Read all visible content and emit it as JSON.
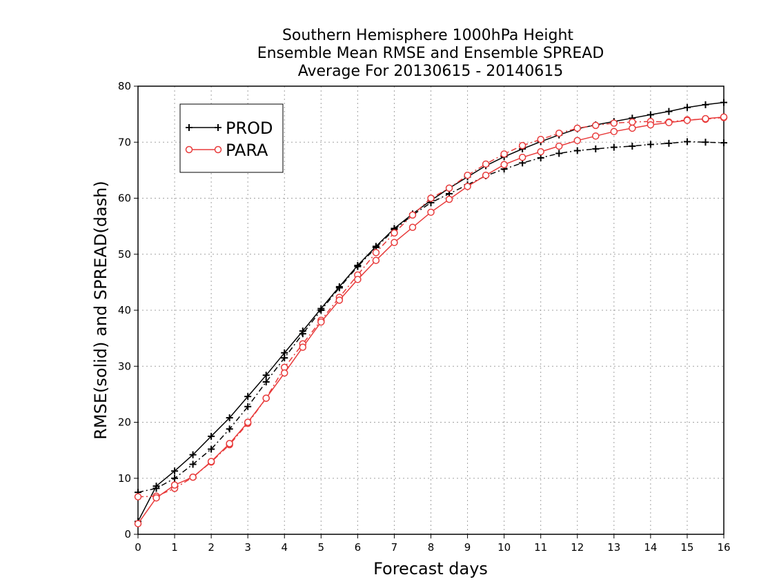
{
  "chart_data": {
    "type": "line",
    "title": [
      "Southern Hemisphere 1000hPa Height",
      "Ensemble Mean RMSE and Ensemble SPREAD",
      "Average For 20130615 - 20140615"
    ],
    "xlabel": "Forecast days",
    "ylabel": "RMSE(solid) and SPREAD(dash)",
    "xlim": [
      0,
      16
    ],
    "ylim": [
      0,
      80
    ],
    "xticks": [
      0,
      1,
      2,
      3,
      4,
      5,
      6,
      7,
      8,
      9,
      10,
      11,
      12,
      13,
      14,
      15,
      16
    ],
    "yticks": [
      0,
      10,
      20,
      30,
      40,
      50,
      60,
      70,
      80
    ],
    "grid": true,
    "legend_position": "top-left",
    "x": [
      0,
      0.5,
      1,
      1.5,
      2,
      2.5,
      3,
      3.5,
      4,
      4.5,
      5,
      5.5,
      6,
      6.5,
      7,
      7.5,
      8,
      8.5,
      9,
      9.5,
      10,
      10.5,
      11,
      11.5,
      12,
      12.5,
      13,
      13.5,
      14,
      14.5,
      15,
      15.5,
      16
    ],
    "series": [
      {
        "name": "PROD",
        "color": "#000000",
        "marker": "plus",
        "rmse": [
          2.3,
          8.6,
          11.3,
          14.2,
          17.5,
          20.8,
          24.6,
          28.4,
          32.4,
          36.3,
          40.3,
          44.2,
          48.0,
          51.4,
          54.6,
          57.2,
          59.6,
          61.8,
          63.8,
          65.8,
          67.4,
          68.8,
          70.1,
          71.3,
          72.4,
          73.1,
          73.7,
          74.3,
          74.9,
          75.5,
          76.2,
          76.7,
          77.1
        ],
        "spread": [
          7.5,
          8.2,
          10.0,
          12.5,
          15.2,
          18.8,
          22.8,
          27.2,
          31.5,
          35.8,
          40.0,
          44.0,
          47.8,
          51.2,
          54.4,
          57.0,
          59.2,
          60.8,
          62.4,
          64.0,
          65.2,
          66.3,
          67.2,
          68.0,
          68.5,
          68.8,
          69.1,
          69.3,
          69.6,
          69.8,
          70.1,
          70.0,
          69.9
        ]
      },
      {
        "name": "PARA",
        "color": "#e83a3a",
        "marker": "circle",
        "rmse": [
          1.9,
          6.5,
          8.8,
          10.2,
          13.0,
          16.2,
          20.0,
          24.3,
          28.8,
          33.4,
          37.9,
          41.8,
          45.5,
          48.9,
          52.1,
          54.8,
          57.5,
          59.8,
          62.1,
          64.1,
          66.0,
          67.3,
          68.3,
          69.3,
          70.3,
          71.1,
          71.9,
          72.5,
          73.1,
          73.5,
          73.9,
          74.2,
          74.5
        ],
        "spread": [
          6.7,
          6.8,
          8.2,
          10.2,
          12.9,
          16.0,
          19.8,
          24.3,
          29.8,
          34.0,
          38.2,
          42.3,
          46.3,
          50.3,
          53.8,
          57.0,
          60.0,
          61.8,
          64.1,
          66.1,
          67.9,
          69.4,
          70.5,
          71.6,
          72.5,
          73.0,
          73.4,
          73.6,
          73.7,
          73.6,
          74.0,
          74.1,
          74.4
        ]
      }
    ]
  }
}
